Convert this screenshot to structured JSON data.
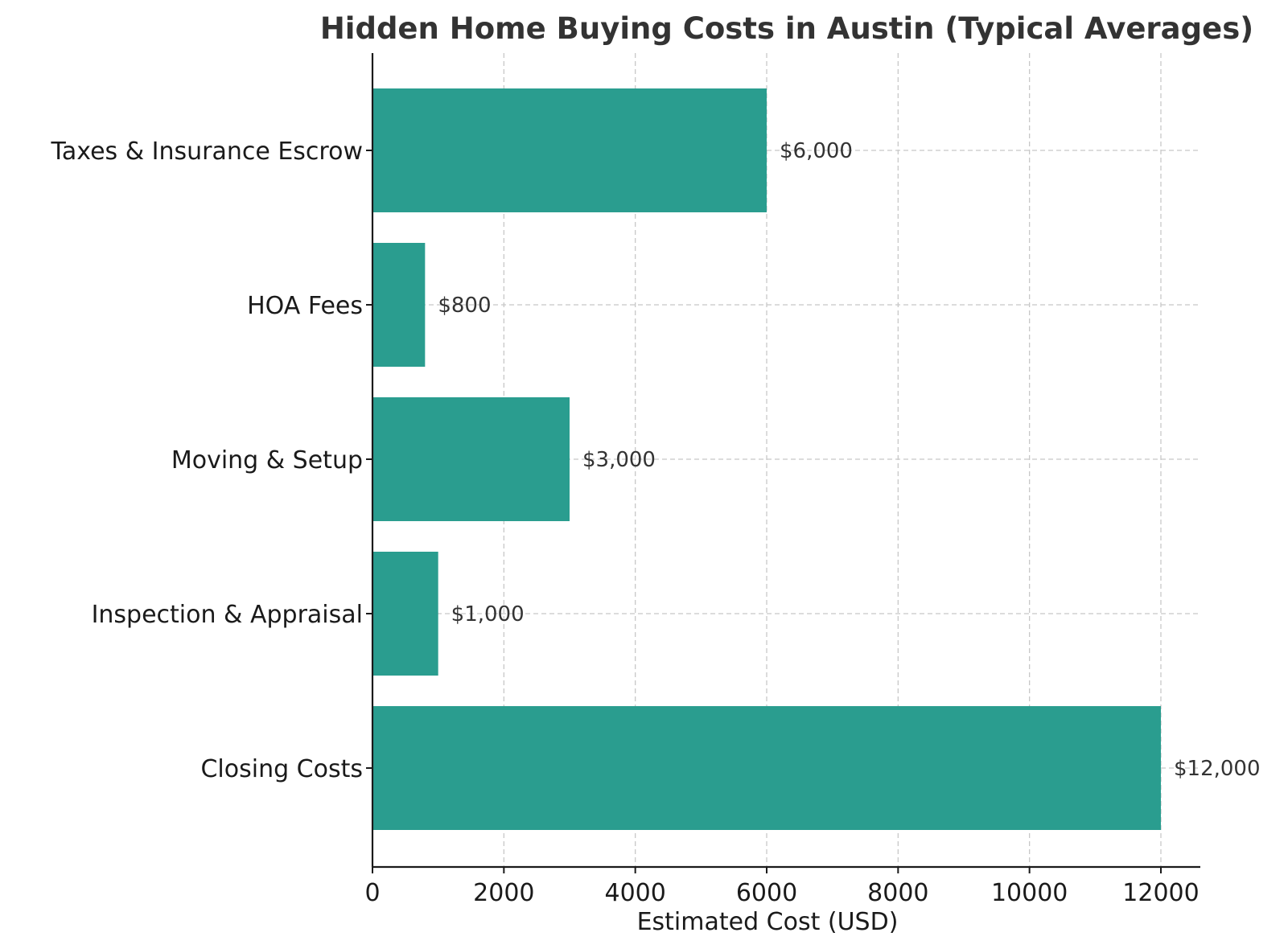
{
  "chart_data": {
    "type": "bar",
    "orientation": "horizontal",
    "title": "Hidden Home Buying Costs in Austin (Typical Averages)",
    "xlabel": "Estimated Cost (USD)",
    "ylabel": "",
    "categories": [
      "Closing Costs",
      "Inspection & Appraisal",
      "Moving & Setup",
      "HOA Fees",
      "Taxes & Insurance Escrow"
    ],
    "values": [
      12000,
      1000,
      3000,
      800,
      6000
    ],
    "value_labels": [
      "$12,000",
      "$1,000",
      "$3,000",
      "$800",
      "$6,000"
    ],
    "xlim": [
      0,
      12600
    ],
    "xticks": [
      0,
      2000,
      4000,
      6000,
      8000,
      10000,
      12000
    ],
    "xtick_labels": [
      "0",
      "2000",
      "4000",
      "6000",
      "8000",
      "10000",
      "12000"
    ],
    "grid": true,
    "bar_color": "#2a9d8f"
  }
}
